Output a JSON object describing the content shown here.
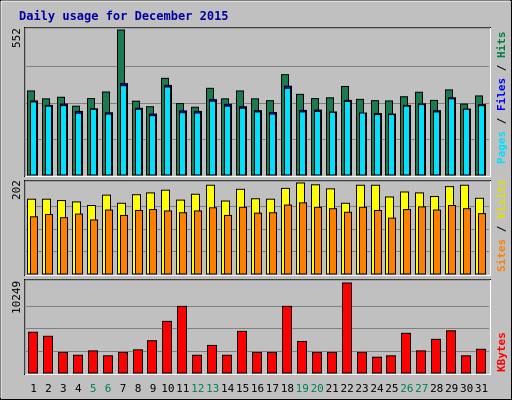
{
  "title": "Daily usage for December 2015",
  "colors": {
    "background": "#c0c0c0",
    "panel": "#c0c0c0",
    "title": "#0000a0",
    "pages": "#00e0ff",
    "files": "#0000ff",
    "hits": "#008040",
    "hits_bar": "#1a7a50",
    "sites": "#ff8000",
    "visits": "#ffff00",
    "kbytes": "#ff0000",
    "weekend_label": "#00805c",
    "weekday_label": "#000000"
  },
  "legend": {
    "pages": "Pages",
    "sep1": "/",
    "files": "Files",
    "sep2": "/",
    "hits": "Hits",
    "sites": "Sites",
    "sep3": "/",
    "visits": "Visits",
    "kbytes": "KBytes"
  },
  "chart_data": [
    {
      "type": "bar",
      "title": "Daily usage for December 2015",
      "categories": [
        "1",
        "2",
        "3",
        "4",
        "5",
        "6",
        "7",
        "8",
        "9",
        "10",
        "11",
        "12",
        "13",
        "14",
        "15",
        "16",
        "17",
        "18",
        "19",
        "20",
        "21",
        "22",
        "23",
        "24",
        "25",
        "26",
        "27",
        "28",
        "29",
        "30",
        "31"
      ],
      "weekend_days": [
        "5",
        "6",
        "12",
        "13",
        "19",
        "20",
        "26",
        "27"
      ],
      "ylim": [
        0,
        552
      ],
      "yticks": [
        "552"
      ],
      "series": [
        {
          "name": "Hits",
          "values": [
            320,
            290,
            296,
            262,
            291,
            316,
            552,
            281,
            260,
            368,
            272,
            258,
            330,
            290,
            320,
            290,
            283,
            382,
            307,
            291,
            294,
            337,
            288,
            283,
            282,
            298,
            315,
            284,
            324,
            270,
            301
          ]
        },
        {
          "name": "Files",
          "values": [
            282,
            265,
            270,
            242,
            252,
            237,
            348,
            254,
            232,
            341,
            244,
            242,
            287,
            269,
            260,
            245,
            238,
            338,
            246,
            247,
            240,
            284,
            236,
            234,
            232,
            265,
            271,
            245,
            294,
            251,
            268
          ]
        },
        {
          "name": "Pages",
          "values": [
            278,
            262,
            264,
            235,
            250,
            232,
            340,
            250,
            226,
            335,
            237,
            236,
            281,
            262,
            254,
            240,
            232,
            330,
            240,
            242,
            238,
            280,
            236,
            230,
            230,
            262,
            268,
            240,
            290,
            250,
            264
          ]
        }
      ]
    },
    {
      "type": "bar",
      "categories": [
        "1",
        "2",
        "3",
        "4",
        "5",
        "6",
        "7",
        "8",
        "9",
        "10",
        "11",
        "12",
        "13",
        "14",
        "15",
        "16",
        "17",
        "18",
        "19",
        "20",
        "21",
        "22",
        "23",
        "24",
        "25",
        "26",
        "27",
        "28",
        "29",
        "30",
        "31"
      ],
      "ylim": [
        0,
        202
      ],
      "yticks": [
        "202"
      ],
      "series": [
        {
          "name": "Visits",
          "values": [
            166,
            166,
            163,
            160,
            152,
            175,
            157,
            176,
            180,
            186,
            164,
            177,
            197,
            162,
            188,
            167,
            166,
            190,
            202,
            198,
            189,
            157,
            197,
            197,
            171,
            182,
            180,
            172,
            194,
            197,
            168
          ]
        },
        {
          "name": "Sites",
          "values": [
            127,
            132,
            125,
            133,
            120,
            142,
            130,
            141,
            143,
            140,
            136,
            140,
            147,
            130,
            148,
            135,
            136,
            153,
            158,
            148,
            145,
            137,
            148,
            141,
            124,
            143,
            149,
            142,
            152,
            145,
            134
          ]
        }
      ]
    },
    {
      "type": "bar",
      "categories": [
        "1",
        "2",
        "3",
        "4",
        "5",
        "6",
        "7",
        "8",
        "9",
        "10",
        "11",
        "12",
        "13",
        "14",
        "15",
        "16",
        "17",
        "18",
        "19",
        "20",
        "21",
        "22",
        "23",
        "24",
        "25",
        "26",
        "27",
        "28",
        "29",
        "30",
        "31"
      ],
      "ylim": [
        0,
        10249
      ],
      "yticks": [
        "10249"
      ],
      "series": [
        {
          "name": "KBytes",
          "values": [
            4640,
            4180,
            2340,
            2020,
            2520,
            1960,
            2340,
            2640,
            3680,
            5880,
            7590,
            2020,
            3140,
            2020,
            4740,
            2340,
            2340,
            7590,
            3590,
            2340,
            2340,
            10249,
            2340,
            1800,
            1960,
            4520,
            2520,
            3830,
            4810,
            1960,
            2700
          ]
        }
      ]
    }
  ]
}
